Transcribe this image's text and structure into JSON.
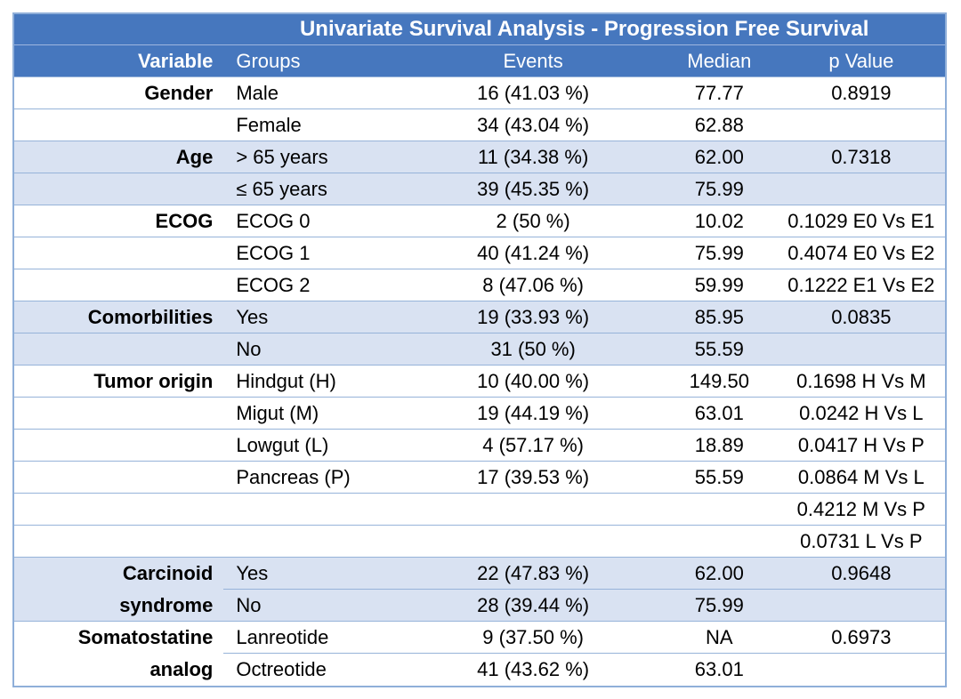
{
  "table": {
    "title": "Univariate Survival Analysis - Progression Free Survival",
    "columns": {
      "variable": "Variable",
      "groups": "Groups",
      "events": "Events",
      "median": "Median",
      "p_value": "p Value"
    },
    "rows": [
      {
        "variable": "Gender",
        "group": "Male",
        "events": "16 (41.03 %)",
        "median": "77.77",
        "p_value": "0.8919"
      },
      {
        "variable": "",
        "group": "Female",
        "events": "34 (43.04 %)",
        "median": "62.88",
        "p_value": ""
      },
      {
        "variable": "Age",
        "group": "> 65 years",
        "events": "11 (34.38 %)",
        "median": "62.00",
        "p_value": "0.7318"
      },
      {
        "variable": "",
        "group": "≤ 65 years",
        "events": "39 (45.35 %)",
        "median": "75.99",
        "p_value": ""
      },
      {
        "variable": "ECOG",
        "group": "ECOG 0",
        "events": "2 (50 %)",
        "median": "10.02",
        "p_value": "0.1029 E0 Vs E1"
      },
      {
        "variable": "",
        "group": "ECOG 1",
        "events": "40 (41.24 %)",
        "median": "75.99",
        "p_value": "0.4074 E0 Vs E2"
      },
      {
        "variable": "",
        "group": "ECOG 2",
        "events": "8 (47.06 %)",
        "median": "59.99",
        "p_value": "0.1222 E1 Vs E2"
      },
      {
        "variable": "Comorbilities",
        "group": "Yes",
        "events": "19 (33.93 %)",
        "median": "85.95",
        "p_value": "0.0835"
      },
      {
        "variable": "",
        "group": "No",
        "events": "31 (50 %)",
        "median": "55.59",
        "p_value": ""
      },
      {
        "variable": "Tumor origin",
        "group": "Hindgut (H)",
        "events": "10 (40.00 %)",
        "median": "149.50",
        "p_value": "0.1698 H Vs M"
      },
      {
        "variable": "",
        "group": "Migut (M)",
        "events": "19 (44.19 %)",
        "median": "63.01",
        "p_value": "0.0242 H Vs L"
      },
      {
        "variable": "",
        "group": "Lowgut (L)",
        "events": "4 (57.17 %)",
        "median": "18.89",
        "p_value": "0.0417 H Vs P"
      },
      {
        "variable": "",
        "group": "Pancreas (P)",
        "events": "17 (39.53 %)",
        "median": "55.59",
        "p_value": "0.0864 M Vs L"
      },
      {
        "variable": "",
        "group": "",
        "events": "",
        "median": "",
        "p_value": "0.4212 M Vs P"
      },
      {
        "variable": "",
        "group": "",
        "events": "",
        "median": "",
        "p_value": "0.0731 L Vs P"
      },
      {
        "variable": "Carcinoid",
        "group": "Yes",
        "events": "22 (47.83 %)",
        "median": "62.00",
        "p_value": "0.9648"
      },
      {
        "variable": "syndrome",
        "group": "No",
        "events": "28 (39.44 %)",
        "median": "75.99",
        "p_value": ""
      },
      {
        "variable": "Somatostatine",
        "group": "Lanreotide",
        "events": "9 (37.50 %)",
        "median": "NA",
        "p_value": "0.6973"
      },
      {
        "variable": "analog",
        "group": "Octreotide",
        "events": "41 (43.62 %)",
        "median": "63.01",
        "p_value": ""
      }
    ],
    "colors": {
      "header_bg": "#4677BE",
      "band_bg": "#D9E2F2",
      "border": "#96B3D9",
      "text": "#000000",
      "header_text": "#FFFFFF"
    }
  }
}
